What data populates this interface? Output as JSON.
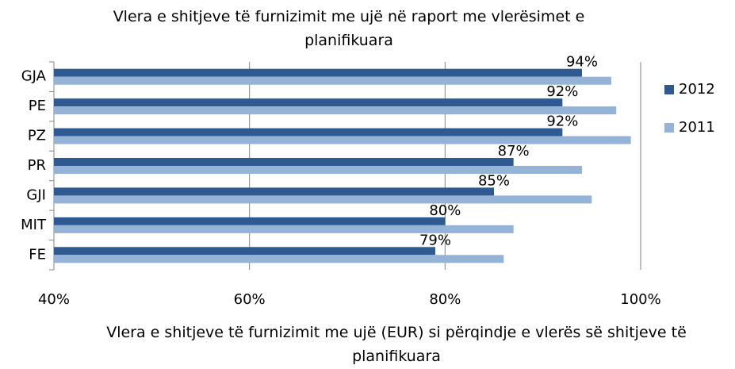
{
  "chart_data": {
    "type": "hbar",
    "title": "Vlera e shitjeve të furnizimit me ujë në raport me vlerësimet e planifikuara",
    "x_label": "Vlera e shitjeve të furnizimit me ujë (EUR) si përqindje e vlerës së shitjeve të planifikuara",
    "categories": [
      "GJA",
      "PE",
      "PZ",
      "PR",
      "GJI",
      "MIT",
      "FE"
    ],
    "series": [
      {
        "name": "2012",
        "color": "#2e5a91",
        "values": [
          94,
          92,
          92,
          87,
          85,
          80,
          79
        ],
        "value_labels": [
          "94%",
          "92%",
          "92%",
          "87%",
          "85%",
          "80%",
          "79%"
        ]
      },
      {
        "name": "2011",
        "color": "#95b3d7",
        "values": [
          97,
          97.5,
          99,
          94,
          95,
          87,
          86
        ]
      }
    ],
    "xlim": [
      40,
      100
    ],
    "xticks": [
      {
        "value": 40,
        "label": "40%"
      },
      {
        "value": 60,
        "label": "60%"
      },
      {
        "value": 80,
        "label": "80%"
      },
      {
        "value": 100,
        "label": "100%"
      }
    ],
    "grid": true,
    "legend": "right"
  }
}
